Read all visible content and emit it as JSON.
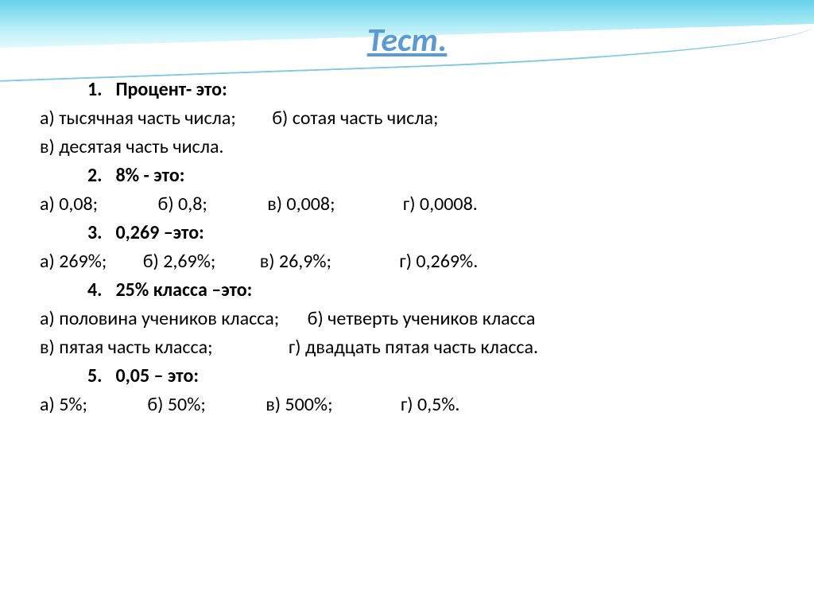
{
  "title": "Тест.",
  "title_color": "#5B9BD5",
  "text_color": "#000000",
  "background_color": "#ffffff",
  "wave_color_start": "#00b4dc",
  "wave_color_end": "#c8f5fa",
  "font_size_title": 42,
  "font_size_body": 24,
  "questions": {
    "q1": {
      "num": "1.",
      "text": "Процент- это:",
      "line1_a": "а) тысячная часть числа;",
      "line1_b": "б) сотая часть числа;",
      "line2_v": "в) десятая часть числа."
    },
    "q2": {
      "num": "2.",
      "text": "8% - это:",
      "opt_a": "а) 0,08;",
      "opt_b": "б) 0,8;",
      "opt_v": "в) 0,008;",
      "opt_g": "г)  0,0008."
    },
    "q3": {
      "num": "3.",
      "text": "0,269 –это:",
      "opt_a": "а) 269%;",
      "opt_b": "б) 2,69%;",
      "opt_v": "в) 26,9%;",
      "opt_g": "г) 0,269%."
    },
    "q4": {
      "num": "4.",
      "text": "25% класса –это:",
      "line1_a": "а) половина учеников класса;",
      "line1_b": "б) четверть учеников класса",
      "line2_v": "в) пятая часть класса;",
      "line2_g": "г) двадцать пятая часть класса."
    },
    "q5": {
      "num": "5.",
      "text": "0,05 – это:",
      "opt_a": "а)  5%;",
      "opt_b": "б) 50%;",
      "opt_v": "в) 500%;",
      "opt_g": "г) 0,5%."
    }
  }
}
